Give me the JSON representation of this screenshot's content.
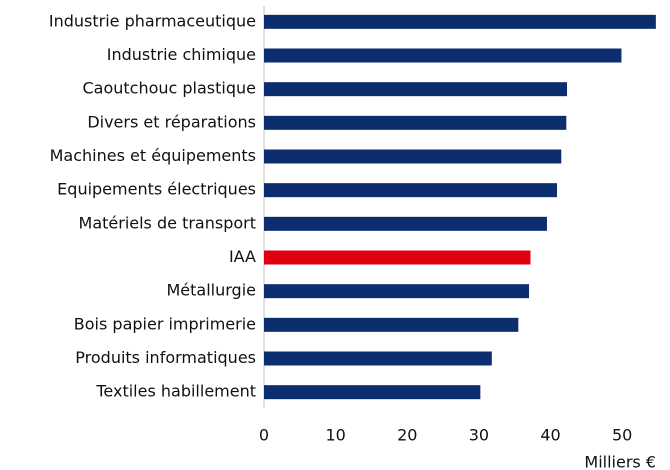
{
  "chart_data": {
    "type": "barh",
    "categories": [
      "Industrie pharmaceutique",
      "Industrie chimique",
      "Caoutchouc plastique",
      "Divers et réparations",
      "Machines et équipements",
      "Equipements électriques",
      "Matériels de transport",
      "IAA",
      "Métallurgie",
      "Bois papier imprimerie",
      "Produits informatiques",
      "Textiles habillement"
    ],
    "values": [
      54.7,
      49.9,
      42.3,
      42.2,
      41.5,
      40.9,
      39.5,
      37.2,
      37.0,
      35.5,
      31.8,
      30.2
    ],
    "colors": [
      "#0c2d6e",
      "#0c2d6e",
      "#0c2d6e",
      "#0c2d6e",
      "#0c2d6e",
      "#0c2d6e",
      "#0c2d6e",
      "#e1000f",
      "#0c2d6e",
      "#0c2d6e",
      "#0c2d6e",
      "#0c2d6e"
    ],
    "xlim": [
      0,
      55
    ],
    "xticks": [
      0,
      10,
      20,
      30,
      40,
      50
    ],
    "grid": false,
    "x_label": "Milliers €"
  }
}
